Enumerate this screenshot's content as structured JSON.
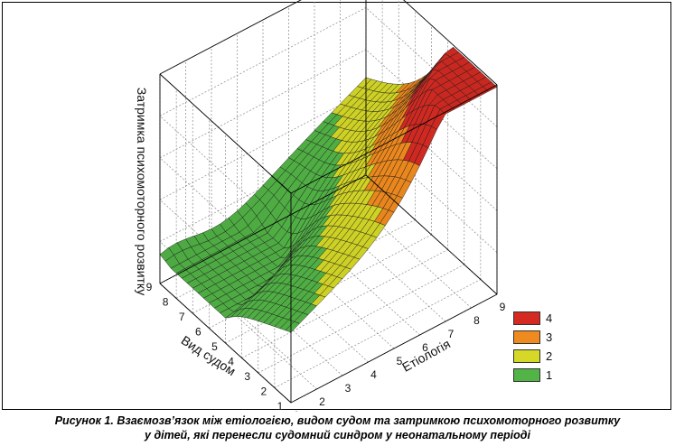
{
  "chart_data": {
    "type": "surface3d",
    "title": "",
    "xlabel": "Вид судом",
    "ylabel": "Етіологія",
    "zlabel": "Затримка психомоторного розвитку",
    "x_ticks": [
      "1",
      "2",
      "3",
      "4",
      "5",
      "6",
      "7",
      "8",
      "9"
    ],
    "y_ticks": [
      "1",
      "2",
      "3",
      "4",
      "5",
      "6",
      "7",
      "8",
      "9"
    ],
    "xlim": [
      1,
      9
    ],
    "ylim": [
      1,
      9
    ],
    "zlim": [
      0,
      5
    ],
    "grid": true,
    "legend_position": "bottom-right",
    "levels": [
      {
        "label": "4",
        "color": "#d42a22"
      },
      {
        "label": "3",
        "color": "#ef8a1e"
      },
      {
        "label": "2",
        "color": "#d5d826"
      },
      {
        "label": "1",
        "color": "#52b446"
      }
    ],
    "surface_samples": [
      {
        "x": 1,
        "y": 1,
        "z": 2.4
      },
      {
        "x": 4,
        "y": 1,
        "z": 2.2
      },
      {
        "x": 9,
        "y": 1,
        "z": 1.1
      },
      {
        "x": 1,
        "y": 9,
        "z": 4.9
      },
      {
        "x": 9,
        "y": 9,
        "z": 1.7
      },
      {
        "x": 5,
        "y": 9,
        "z": 2.9
      }
    ]
  },
  "caption": {
    "line1": "Рисунок 1. Взаємозв’язок між етіологією, видом судом та затримкою психомоторного розвитку",
    "line2": "у дітей, які перенесли судомний синдром у неонатальному періоді"
  }
}
